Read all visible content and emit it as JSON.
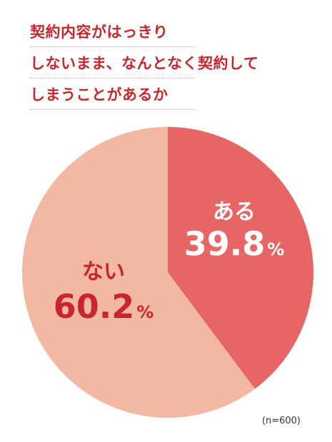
{
  "title_lines": [
    "契約内容がはっきり",
    "しないまま、なんとなく契約して",
    "しまうことがあるか"
  ],
  "sample_note": "(n=600)",
  "colors": {
    "title": "#c8262c",
    "slice_aru": "#e86566",
    "slice_nai": "#f3b8a1",
    "label_aru": "#ffffff",
    "label_nai": "#c8262c"
  },
  "chart_data": {
    "type": "pie",
    "title": "",
    "slices": [
      {
        "label": "ある",
        "value": 39.8,
        "value_text": "39.8",
        "unit": "%"
      },
      {
        "label": "ない",
        "value": 60.2,
        "value_text": "60.2",
        "unit": "%"
      }
    ]
  }
}
